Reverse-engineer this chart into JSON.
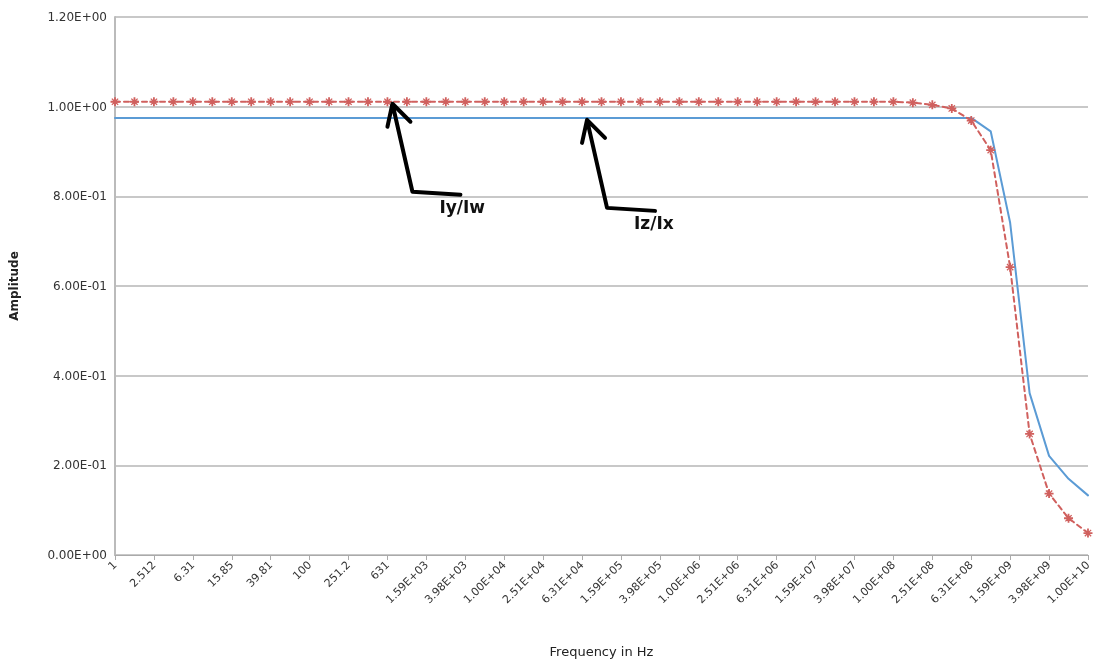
{
  "chart_data": {
    "type": "line",
    "xlabel": "Frequency in Hz",
    "ylabel": "Amplitude",
    "categories": [
      "1",
      null,
      "2.512",
      null,
      "6.31",
      null,
      "15.85",
      null,
      "39.81",
      null,
      "100",
      null,
      "251.2",
      null,
      "631",
      null,
      "1.59E+03",
      null,
      "3.98E+03",
      null,
      "1.00E+04",
      null,
      "2.51E+04",
      null,
      "6.31E+04",
      null,
      "1.59E+05",
      null,
      "3.98E+05",
      null,
      "1.00E+06",
      null,
      "2.51E+06",
      null,
      "6.31E+06",
      null,
      "1.59E+07",
      null,
      "3.98E+07",
      null,
      "1.00E+08",
      null,
      "2.51E+08",
      null,
      "6.31E+08",
      null,
      "1.59E+09",
      null,
      "3.98E+09",
      null,
      "1.00E+10"
    ],
    "series": [
      {
        "color": "#5b9bd5",
        "marker": "none",
        "line_style": "solid",
        "values": [
          0.975,
          0.975,
          0.975,
          0.975,
          0.975,
          0.975,
          0.975,
          0.975,
          0.975,
          0.975,
          0.975,
          0.975,
          0.975,
          0.975,
          0.975,
          0.975,
          0.975,
          0.975,
          0.975,
          0.975,
          0.975,
          0.975,
          0.975,
          0.975,
          0.975,
          0.975,
          0.975,
          0.975,
          0.975,
          0.975,
          0.975,
          0.975,
          0.975,
          0.975,
          0.975,
          0.975,
          0.975,
          0.975,
          0.975,
          0.975,
          0.975,
          0.975,
          0.975,
          0.975,
          0.975,
          0.945,
          0.741,
          0.361,
          0.221,
          0.17,
          0.133
        ]
      },
      {
        "color": "#d0605e",
        "marker": "star",
        "line_style": "dashed",
        "values": [
          1.011,
          1.011,
          1.011,
          1.011,
          1.011,
          1.011,
          1.011,
          1.011,
          1.011,
          1.011,
          1.011,
          1.011,
          1.011,
          1.011,
          1.011,
          1.011,
          1.011,
          1.011,
          1.011,
          1.011,
          1.011,
          1.011,
          1.011,
          1.011,
          1.011,
          1.011,
          1.011,
          1.011,
          1.011,
          1.011,
          1.011,
          1.011,
          1.011,
          1.011,
          1.011,
          1.011,
          1.011,
          1.011,
          1.011,
          1.011,
          1.011,
          1.009,
          1.004,
          0.996,
          0.969,
          0.903,
          0.642,
          0.27,
          0.137,
          0.082,
          0.049
        ]
      }
    ],
    "ylim": [
      0,
      1.2
    ],
    "yticks": [
      {
        "value": 0,
        "label": "0.00E+00"
      },
      {
        "value": 0.2,
        "label": "2.00E-01"
      },
      {
        "value": 0.4,
        "label": "4.00E-01"
      },
      {
        "value": 0.6,
        "label": "6.00E-01"
      },
      {
        "value": 0.8,
        "label": "8.00E-01"
      },
      {
        "value": 1,
        "label": "1.00E+00"
      },
      {
        "value": 1.2,
        "label": "1.20E+00"
      }
    ],
    "grid": "y",
    "annotations": [
      {
        "text": "Iy/Iw",
        "x": "631",
        "y": 1.011
      },
      {
        "text": "Iz/Ix",
        "x": "6.31E+04",
        "y": 0.975
      }
    ]
  }
}
